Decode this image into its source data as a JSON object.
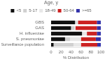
{
  "chart_data": {
    "type": "bar",
    "orientation": "horizontal",
    "stacked": true,
    "title": "Age, y",
    "xlabel": "% Distribution",
    "categories": [
      "GBS",
      "GAS",
      "H. influenzae",
      "S. pneumoniae",
      "Surveillance population"
    ],
    "series": [
      {
        "name": "<5",
        "color": "#111111",
        "values": [
          48,
          40,
          62,
          28,
          5
        ]
      },
      {
        "name": "5-17",
        "color": "#d0d0d0",
        "values": [
          3,
          7,
          2,
          10,
          40
        ]
      },
      {
        "name": "18-49",
        "color": "#e8e8e8",
        "values": [
          3,
          2,
          8,
          22,
          15
        ]
      },
      {
        "name": "50-64",
        "color": "#cc2222",
        "values": [
          38,
          43,
          20,
          30,
          33
        ]
      },
      {
        "name": ">=65",
        "color": "#3333aa",
        "values": [
          8,
          8,
          8,
          10,
          7
        ]
      }
    ],
    "xlim": [
      0,
      100
    ],
    "xticks": [
      0,
      20,
      40,
      60,
      80,
      100
    ],
    "grid": false,
    "legend": "top"
  }
}
